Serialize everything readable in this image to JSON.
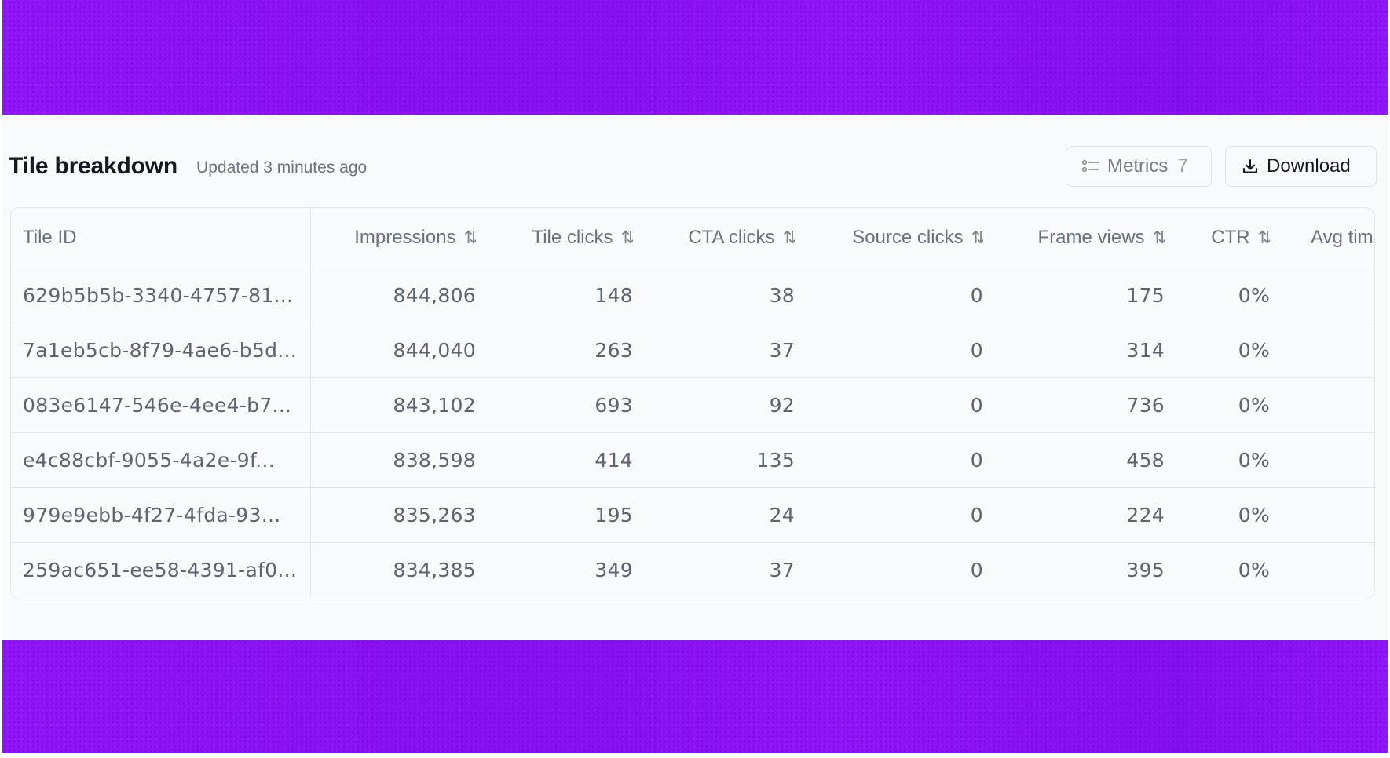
{
  "header": {
    "title": "Tile breakdown",
    "updated": "Updated 3 minutes ago",
    "metrics_label": "Metrics",
    "metrics_count": "7",
    "download_label": "Download"
  },
  "table": {
    "columns": [
      "Tile ID",
      "Impressions",
      "Tile clicks",
      "CTA clicks",
      "Source clicks",
      "Frame views",
      "CTR",
      "Avg tim"
    ],
    "sort_glyph": "⇅",
    "rows": [
      [
        "629b5b5b-3340-4757-81...",
        "844,806",
        "148",
        "38",
        "0",
        "175",
        "0%"
      ],
      [
        "7a1eb5cb-8f79-4ae6-b5d...",
        "844,040",
        "263",
        "37",
        "0",
        "314",
        "0%"
      ],
      [
        "083e6147-546e-4ee4-b7...",
        "843,102",
        "693",
        "92",
        "0",
        "736",
        "0%"
      ],
      [
        "e4c88cbf-9055-4a2e-9f...",
        "838,598",
        "414",
        "135",
        "0",
        "458",
        "0%"
      ],
      [
        "979e9ebb-4f27-4fda-93...",
        "835,263",
        "195",
        "24",
        "0",
        "224",
        "0%"
      ],
      [
        "259ac651-ee58-4391-af0...",
        "834,385",
        "349",
        "37",
        "0",
        "395",
        "0%"
      ]
    ]
  }
}
